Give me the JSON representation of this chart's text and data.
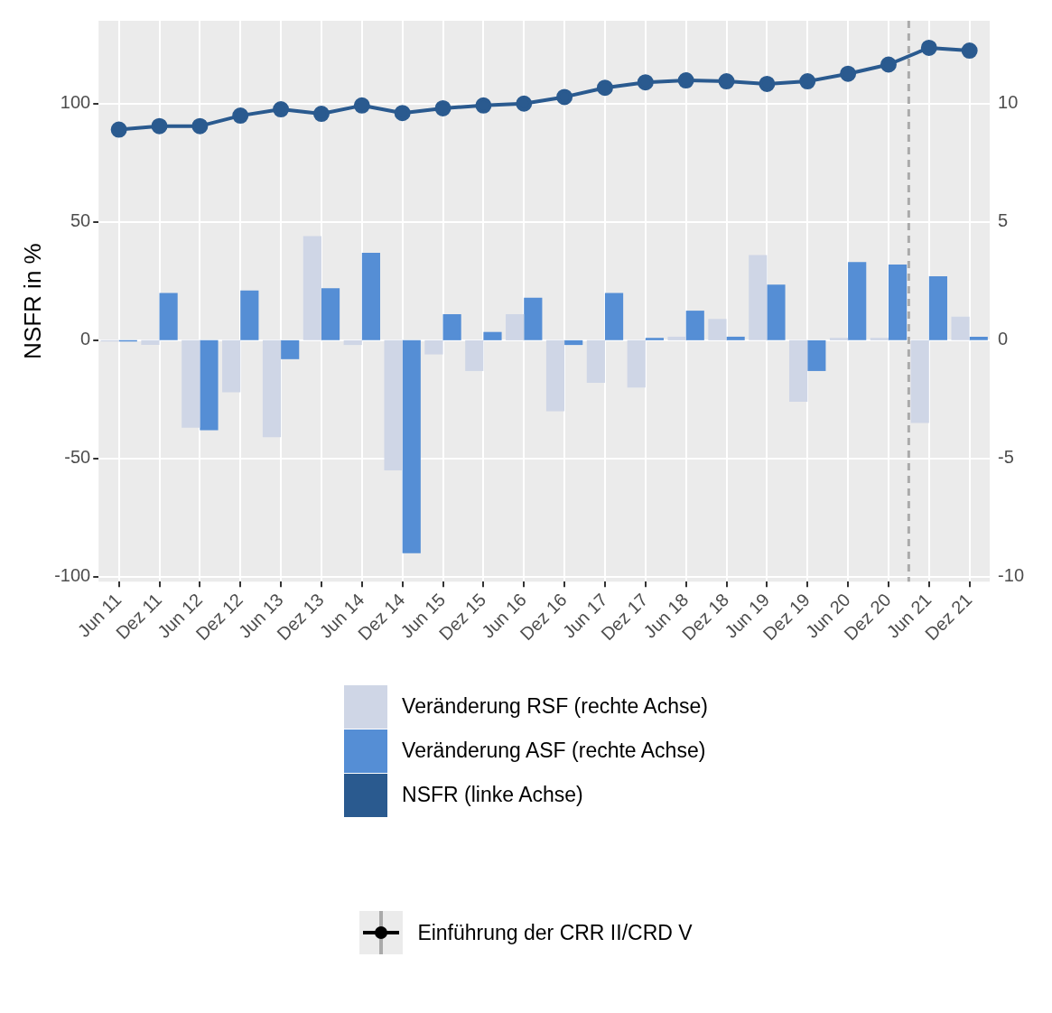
{
  "chart_data": {
    "type": "bar",
    "ylabel": "NSFR in %",
    "categories": [
      "Jun 11",
      "Dez 11",
      "Jun 12",
      "Dez 12",
      "Jun 13",
      "Dez 13",
      "Jun 14",
      "Dez 14",
      "Jun 15",
      "Dez 15",
      "Jun 16",
      "Dez 16",
      "Jun 17",
      "Dez 17",
      "Jun 18",
      "Dez 18",
      "Jun 19",
      "Dez 19",
      "Jun 20",
      "Dez 20",
      "Jun 21",
      "Dez 21"
    ],
    "series": [
      {
        "name": "Veränderung RSF (rechte Achse)",
        "axis": "y2",
        "color": "#cfd6e6",
        "values": [
          -0.05,
          -0.2,
          -3.7,
          -2.2,
          -4.1,
          4.4,
          -0.2,
          -5.5,
          -0.6,
          -1.3,
          1.1,
          -3.0,
          -1.8,
          -2.0,
          0.15,
          0.9,
          3.6,
          -2.6,
          0.1,
          0.1,
          -3.5,
          1.0
        ]
      },
      {
        "name": "Veränderung ASF (rechte Achse)",
        "axis": "y2",
        "color": "#558ed5",
        "values": [
          -0.05,
          2.0,
          -3.8,
          2.1,
          -0.8,
          2.2,
          3.7,
          -9.0,
          1.1,
          0.35,
          1.8,
          -0.2,
          2.0,
          0.1,
          1.25,
          0.15,
          2.35,
          -1.3,
          3.3,
          3.2,
          2.7,
          0.15
        ]
      },
      {
        "name": "NSFR (linke Achse)",
        "type": "line",
        "axis": "y",
        "color": "#2a5a8f",
        "values": [
          89,
          90.5,
          90.5,
          94.9,
          97.6,
          95.7,
          99.2,
          96,
          98,
          99.2,
          100,
          102.8,
          106.7,
          109,
          109.8,
          109.4,
          108.3,
          109.4,
          112.6,
          116.5,
          123.6,
          122.4
        ]
      }
    ],
    "ylim": [
      -102,
      135
    ],
    "yticks": [
      -100,
      -50,
      0,
      50,
      100
    ],
    "y2lim": [
      -10.2,
      13.5
    ],
    "y2ticks": [
      -10,
      -5,
      0,
      5,
      10
    ],
    "ref_lines": [
      {
        "axis": "x",
        "value": "Jun 21",
        "label": "Einführung der CRR II/CRD V",
        "color": "#aaaaaa",
        "line_style": "dashed"
      }
    ],
    "grid": true,
    "legend": "bottom",
    "marker": "circle"
  }
}
